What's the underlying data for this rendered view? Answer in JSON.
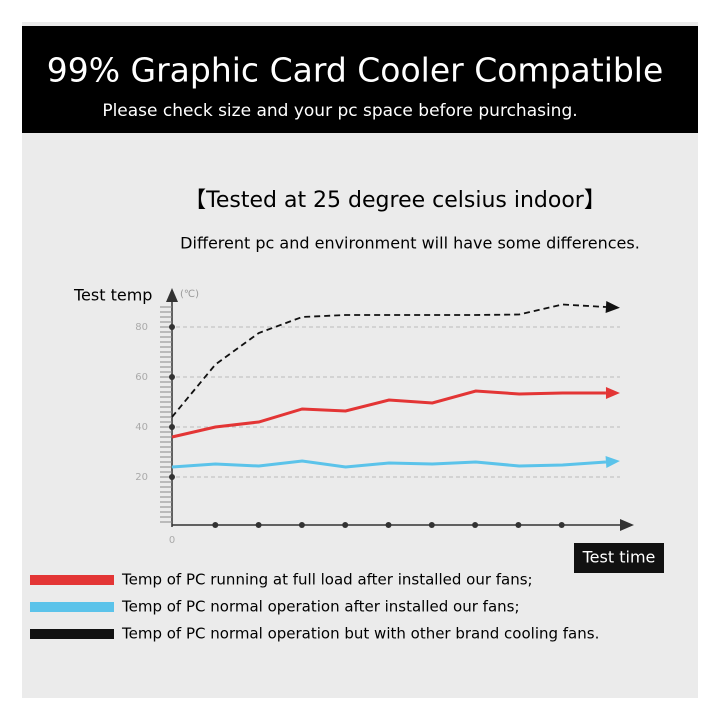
{
  "header": {
    "title": "99% Graphic Card Cooler Compatible",
    "subtitle": "Please check size and your pc space before purchasing."
  },
  "chart_data": {
    "type": "line",
    "title": "【Tested at 25 degree celsius indoor】",
    "subtitle": "Different pc and environment will have some differences.",
    "y_label": "Test temp",
    "y_unit": "(℃)",
    "x_label": "Test time",
    "x": [
      0,
      1,
      2,
      3,
      4,
      5,
      6,
      7,
      8,
      9,
      10
    ],
    "xlim": [
      0,
      10.6
    ],
    "xticks": [
      0
    ],
    "ylim": [
      0,
      93
    ],
    "yticks": [
      20,
      40,
      60,
      80
    ],
    "grid": true,
    "series": [
      {
        "name": "Temp of PC running at full load after installed our fans;",
        "color": "#e33535",
        "style": "solid",
        "values": [
          36,
          40,
          42,
          47.2,
          46.4,
          50.8,
          49.6,
          54.4,
          53.2,
          53.6,
          53.6
        ]
      },
      {
        "name": "Temp of PC normal operation after installed our fans;",
        "color": "#5bc3ea",
        "style": "solid",
        "values": [
          24,
          25.2,
          24.4,
          26.4,
          24,
          25.6,
          25.2,
          26,
          24.4,
          24.8,
          26
        ]
      },
      {
        "name": "Temp of PC normal operation but with other brand cooling fans.",
        "color": "#111111",
        "style": "dashed",
        "values": [
          44,
          65,
          77.6,
          84,
          84.8,
          84.8,
          84.8,
          84.8,
          85,
          89,
          88
        ]
      }
    ]
  }
}
